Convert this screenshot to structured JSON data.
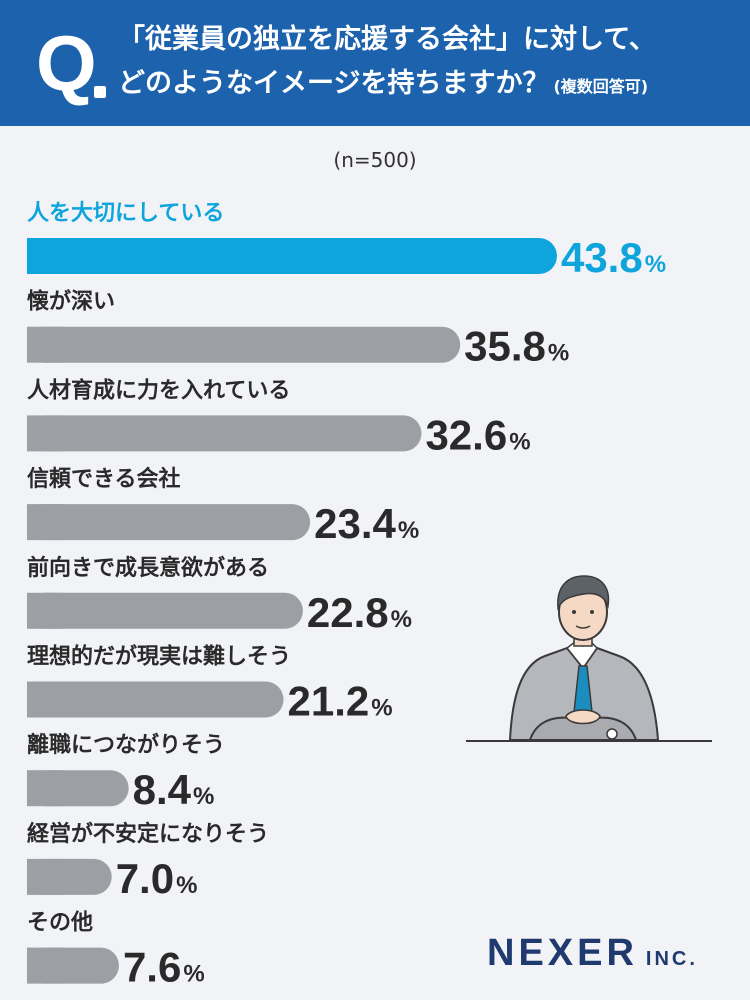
{
  "header": {
    "q_letter": "Q",
    "line1": "「従業員の独立を応援する会社」に対して、",
    "line2": "どのようなイメージを持ちますか？",
    "note": "(複数回答可)"
  },
  "sample_size": "(n=500)",
  "chart_data": {
    "type": "bar",
    "orientation": "horizontal",
    "categories": [
      "人を大切にしている",
      "懐が深い",
      "人材育成に力を入れている",
      "信頼できる会社",
      "前向きで成長意欲がある",
      "理想的だが現実は難しそう",
      "離職につながりそう",
      "経営が不安定になりそう",
      "その他"
    ],
    "values": [
      43.8,
      35.8,
      32.6,
      23.4,
      22.8,
      21.2,
      8.4,
      7.0,
      7.6
    ],
    "value_labels": [
      "43.8",
      "35.8",
      "32.6",
      "23.4",
      "22.8",
      "21.2",
      "8.4",
      "7.0",
      "7.6"
    ],
    "unit": "%",
    "highlight_index": 0,
    "colors": {
      "highlight": "#0ea5dc",
      "bar": "#9d9fa4",
      "label": "#2a2a2a",
      "value": "#2a2a2a"
    }
  },
  "logo": {
    "main": "NEXER",
    "sub": "INC."
  }
}
